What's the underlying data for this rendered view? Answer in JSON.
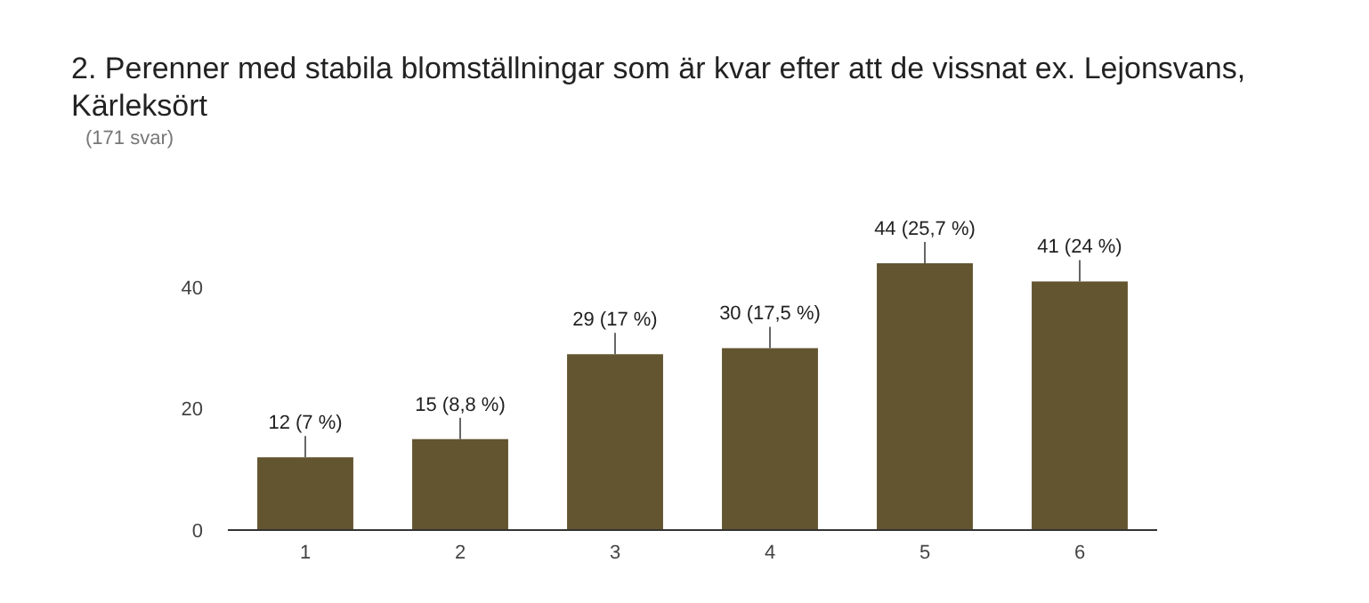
{
  "chart_data": {
    "type": "bar",
    "title": "2. Perenner med stabila blomställningar som är kvar efter att de vissnat ex. Lejonsvans, Kärleksört",
    "subtitle": "(171 svar)",
    "categories": [
      "1",
      "2",
      "3",
      "4",
      "5",
      "6"
    ],
    "values": [
      12,
      15,
      29,
      30,
      44,
      41
    ],
    "value_labels": [
      "12 (7 %)",
      "15 (8,8 %)",
      "29 (17 %)",
      "30 (17,5 %)",
      "44 (25,7 %)",
      "41 (24 %)"
    ],
    "color": "#625530",
    "ylim": [
      0,
      44
    ],
    "yticks": [
      0,
      20,
      40
    ],
    "grid": false
  }
}
